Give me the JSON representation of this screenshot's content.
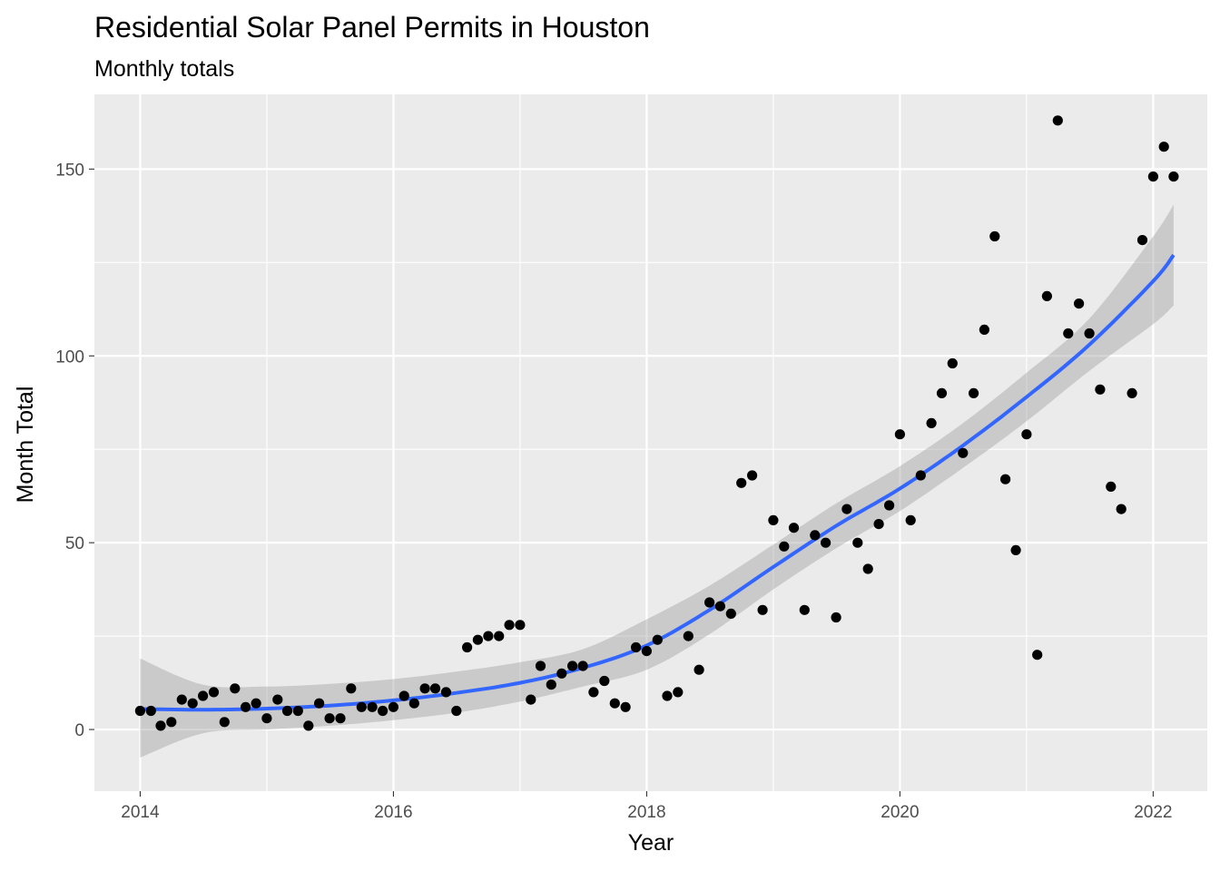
{
  "chart_data": {
    "type": "scatter",
    "title": "Residential Solar Panel Permits in Houston",
    "subtitle": "Monthly totals",
    "xlabel": "Year",
    "ylabel": "Month Total",
    "xlim": [
      "2013-08-22",
      "2022-06-06"
    ],
    "ylim": [
      -16.5,
      170
    ],
    "x_ticks": [
      "2014",
      "2016",
      "2018",
      "2020",
      "2022"
    ],
    "y_ticks": [
      "0",
      "50",
      "100",
      "150"
    ],
    "grid": true,
    "point_color": "#000000",
    "smooth_color": "#3366ff",
    "band_color": "#999999",
    "panel_background": "#ebebeb",
    "points": [
      [
        "2014-01-01",
        5
      ],
      [
        "2014-02-01",
        5
      ],
      [
        "2014-03-01",
        1
      ],
      [
        "2014-04-01",
        2
      ],
      [
        "2014-05-01",
        8
      ],
      [
        "2014-06-01",
        7
      ],
      [
        "2014-07-01",
        9
      ],
      [
        "2014-08-01",
        10
      ],
      [
        "2014-09-01",
        2
      ],
      [
        "2014-10-01",
        11
      ],
      [
        "2014-11-01",
        6
      ],
      [
        "2014-12-01",
        7
      ],
      [
        "2015-01-01",
        3
      ],
      [
        "2015-02-01",
        8
      ],
      [
        "2015-03-01",
        5
      ],
      [
        "2015-04-01",
        5
      ],
      [
        "2015-05-01",
        1
      ],
      [
        "2015-06-01",
        7
      ],
      [
        "2015-07-01",
        3
      ],
      [
        "2015-08-01",
        3
      ],
      [
        "2015-09-01",
        11
      ],
      [
        "2015-10-01",
        6
      ],
      [
        "2015-11-01",
        6
      ],
      [
        "2015-12-01",
        5
      ],
      [
        "2016-01-01",
        6
      ],
      [
        "2016-02-01",
        9
      ],
      [
        "2016-03-01",
        7
      ],
      [
        "2016-04-01",
        11
      ],
      [
        "2016-05-01",
        11
      ],
      [
        "2016-06-01",
        10
      ],
      [
        "2016-07-01",
        5
      ],
      [
        "2016-08-01",
        22
      ],
      [
        "2016-09-01",
        24
      ],
      [
        "2016-10-01",
        25
      ],
      [
        "2016-11-01",
        25
      ],
      [
        "2016-12-01",
        28
      ],
      [
        "2017-01-01",
        28
      ],
      [
        "2017-02-01",
        8
      ],
      [
        "2017-03-01",
        17
      ],
      [
        "2017-04-01",
        12
      ],
      [
        "2017-05-01",
        15
      ],
      [
        "2017-06-01",
        17
      ],
      [
        "2017-07-01",
        17
      ],
      [
        "2017-08-01",
        10
      ],
      [
        "2017-09-01",
        13
      ],
      [
        "2017-10-01",
        7
      ],
      [
        "2017-11-01",
        6
      ],
      [
        "2017-12-01",
        22
      ],
      [
        "2018-01-01",
        21
      ],
      [
        "2018-02-01",
        24
      ],
      [
        "2018-03-01",
        9
      ],
      [
        "2018-04-01",
        10
      ],
      [
        "2018-05-01",
        25
      ],
      [
        "2018-06-01",
        16
      ],
      [
        "2018-07-01",
        34
      ],
      [
        "2018-08-01",
        33
      ],
      [
        "2018-09-01",
        31
      ],
      [
        "2018-10-01",
        66
      ],
      [
        "2018-11-01",
        68
      ],
      [
        "2018-12-01",
        32
      ],
      [
        "2019-01-01",
        56
      ],
      [
        "2019-02-01",
        49
      ],
      [
        "2019-03-01",
        54
      ],
      [
        "2019-04-01",
        32
      ],
      [
        "2019-05-01",
        52
      ],
      [
        "2019-06-01",
        50
      ],
      [
        "2019-07-01",
        30
      ],
      [
        "2019-08-01",
        59
      ],
      [
        "2019-09-01",
        50
      ],
      [
        "2019-10-01",
        43
      ],
      [
        "2019-11-01",
        55
      ],
      [
        "2019-12-01",
        60
      ],
      [
        "2020-01-01",
        79
      ],
      [
        "2020-02-01",
        56
      ],
      [
        "2020-03-01",
        68
      ],
      [
        "2020-04-01",
        82
      ],
      [
        "2020-05-01",
        90
      ],
      [
        "2020-06-01",
        98
      ],
      [
        "2020-07-01",
        74
      ],
      [
        "2020-08-01",
        90
      ],
      [
        "2020-09-01",
        107
      ],
      [
        "2020-10-01",
        132
      ],
      [
        "2020-11-01",
        67
      ],
      [
        "2020-12-01",
        48
      ],
      [
        "2021-01-01",
        79
      ],
      [
        "2021-02-01",
        20
      ],
      [
        "2021-03-01",
        116
      ],
      [
        "2021-04-01",
        163
      ],
      [
        "2021-05-01",
        106
      ],
      [
        "2021-06-01",
        114
      ],
      [
        "2021-07-01",
        106
      ],
      [
        "2021-08-01",
        91
      ],
      [
        "2021-09-01",
        65
      ],
      [
        "2021-10-01",
        59
      ],
      [
        "2021-11-01",
        90
      ],
      [
        "2021-12-01",
        131
      ],
      [
        "2022-01-01",
        148
      ],
      [
        "2022-02-01",
        156
      ],
      [
        "2022-03-01",
        148
      ]
    ],
    "smooth": [
      [
        "2014-01-01",
        5.5,
        -7.5,
        19
      ],
      [
        "2014-07-01",
        5.3,
        -1,
        12
      ],
      [
        "2015-01-01",
        5.6,
        0,
        11.5
      ],
      [
        "2015-07-01",
        6.4,
        1,
        12.2
      ],
      [
        "2016-01-01",
        7.8,
        2.5,
        13.5
      ],
      [
        "2016-07-01",
        9.8,
        4.5,
        15.5
      ],
      [
        "2017-01-01",
        12.5,
        7.5,
        18
      ],
      [
        "2017-07-01",
        16.5,
        11.5,
        21.5
      ],
      [
        "2018-01-01",
        22.5,
        16,
        29.5
      ],
      [
        "2018-07-01",
        32,
        25.5,
        38.5
      ],
      [
        "2019-01-01",
        43.5,
        37.5,
        49.5
      ],
      [
        "2019-07-01",
        54.5,
        48.5,
        60.5
      ],
      [
        "2020-01-01",
        64.5,
        58.5,
        70.5
      ],
      [
        "2020-07-01",
        76,
        70,
        82
      ],
      [
        "2021-01-01",
        89,
        82.5,
        95.5
      ],
      [
        "2021-07-01",
        103,
        96,
        110
      ],
      [
        "2022-01-01",
        120,
        108.5,
        132
      ],
      [
        "2022-03-01",
        127,
        113.5,
        140.5
      ]
    ]
  }
}
